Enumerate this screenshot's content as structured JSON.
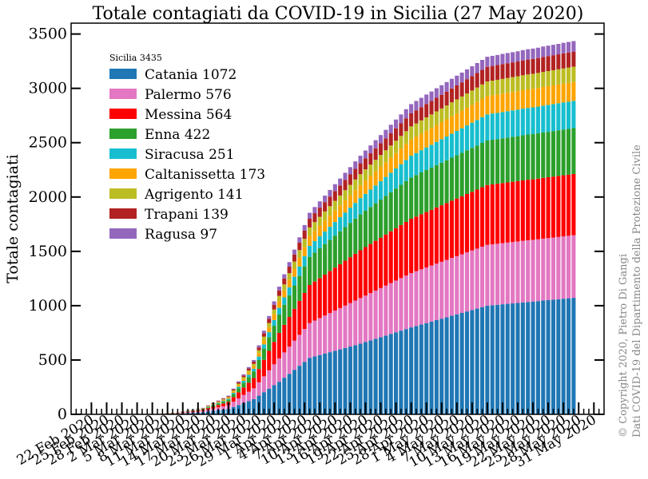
{
  "chart_data": {
    "type": "bar",
    "stacked": true,
    "title": "Totale contagiati da COVID-19 in Sicilia (27 May 2020)",
    "ylabel": "Totale contagiati",
    "xlabel": "",
    "ylim": [
      0,
      3600
    ],
    "yticks": [
      0,
      500,
      1000,
      1500,
      2000,
      2500,
      3000,
      3500
    ],
    "xlim": [
      "2020-02-18",
      "2020-06-02"
    ],
    "x_tick_labels": [
      {
        "date": "2020-02-22",
        "label": "22 Feb 2020"
      },
      {
        "date": "2020-02-25",
        "label": "25 Feb 2020"
      },
      {
        "date": "2020-02-28",
        "label": "28 Feb 2020"
      },
      {
        "date": "2020-03-02",
        "label": "2 Mar 2020"
      },
      {
        "date": "2020-03-05",
        "label": "5 Mar 2020"
      },
      {
        "date": "2020-03-08",
        "label": "8 Mar 2020"
      },
      {
        "date": "2020-03-11",
        "label": "11 Mar 2020"
      },
      {
        "date": "2020-03-14",
        "label": "14 Mar 2020"
      },
      {
        "date": "2020-03-17",
        "label": "17 Mar 2020"
      },
      {
        "date": "2020-03-20",
        "label": "20 Mar 2020"
      },
      {
        "date": "2020-03-23",
        "label": "23 Mar 2020"
      },
      {
        "date": "2020-03-26",
        "label": "26 Mar 2020"
      },
      {
        "date": "2020-03-29",
        "label": "29 Mar 2020"
      },
      {
        "date": "2020-04-01",
        "label": "1 Apr 2020"
      },
      {
        "date": "2020-04-04",
        "label": "4 Apr 2020"
      },
      {
        "date": "2020-04-07",
        "label": "7 Apr 2020"
      },
      {
        "date": "2020-04-10",
        "label": "10 Apr 2020"
      },
      {
        "date": "2020-04-13",
        "label": "13 Apr 2020"
      },
      {
        "date": "2020-04-16",
        "label": "16 Apr 2020"
      },
      {
        "date": "2020-04-19",
        "label": "19 Apr 2020"
      },
      {
        "date": "2020-04-22",
        "label": "22 Apr 2020"
      },
      {
        "date": "2020-04-25",
        "label": "25 Apr 2020"
      },
      {
        "date": "2020-04-28",
        "label": "28 Apr 2020"
      },
      {
        "date": "2020-05-01",
        "label": "1 May 2020"
      },
      {
        "date": "2020-05-04",
        "label": "4 May 2020"
      },
      {
        "date": "2020-05-07",
        "label": "7 May 2020"
      },
      {
        "date": "2020-05-10",
        "label": "10 May 2020"
      },
      {
        "date": "2020-05-13",
        "label": "13 May 2020"
      },
      {
        "date": "2020-05-16",
        "label": "16 May 2020"
      },
      {
        "date": "2020-05-19",
        "label": "19 May 2020"
      },
      {
        "date": "2020-05-22",
        "label": "22 May 2020"
      },
      {
        "date": "2020-05-25",
        "label": "25 May 2020"
      },
      {
        "date": "2020-05-28",
        "label": "28 May 2020"
      },
      {
        "date": "2020-05-31",
        "label": "31 May 2020"
      }
    ],
    "legend": {
      "placement": "upper-left",
      "title": "Sicilia  3435",
      "entries": [
        "Catania 1072",
        "Palermo 576",
        "Messina 564",
        "Enna 422",
        "Siracusa 251",
        "Caltanissetta 173",
        "Agrigento 141",
        "Trapani 139",
        "Ragusa 97"
      ]
    },
    "grid": false,
    "anchor_dates": [
      "2020-03-05",
      "2020-03-10",
      "2020-03-15",
      "2020-03-20",
      "2020-03-25",
      "2020-03-30",
      "2020-04-05",
      "2020-04-15",
      "2020-04-25",
      "2020-05-10",
      "2020-05-27"
    ],
    "series": [
      {
        "name": "Catania",
        "color": "#1f77b4",
        "anchor_values": [
          1,
          6,
          20,
          50,
          140,
          300,
          520,
          650,
          800,
          1000,
          1072
        ]
      },
      {
        "name": "Palermo",
        "color": "#e377c2",
        "anchor_values": [
          0,
          4,
          12,
          35,
          100,
          215,
          320,
          420,
          500,
          560,
          576
        ]
      },
      {
        "name": "Messina",
        "color": "#ff0000",
        "anchor_values": [
          0,
          2,
          10,
          30,
          95,
          235,
          350,
          440,
          500,
          550,
          564
        ]
      },
      {
        "name": "Enna",
        "color": "#2ca02c",
        "anchor_values": [
          0,
          1,
          5,
          20,
          60,
          170,
          260,
          330,
          380,
          410,
          422
        ]
      },
      {
        "name": "Siracusa",
        "color": "#17becf",
        "anchor_values": [
          0,
          1,
          3,
          8,
          25,
          60,
          100,
          150,
          200,
          240,
          251
        ]
      },
      {
        "name": "Caltanissetta",
        "color": "#ffa500",
        "anchor_values": [
          0,
          1,
          3,
          10,
          25,
          60,
          90,
          120,
          150,
          168,
          173
        ]
      },
      {
        "name": "Agrigento",
        "color": "#bcbd22",
        "anchor_values": [
          0,
          0,
          2,
          6,
          20,
          50,
          80,
          100,
          120,
          135,
          141
        ]
      },
      {
        "name": "Trapani",
        "color": "#b22222",
        "anchor_values": [
          0,
          1,
          3,
          8,
          20,
          50,
          80,
          100,
          120,
          135,
          139
        ]
      },
      {
        "name": "Ragusa",
        "color": "#9467bd",
        "anchor_values": [
          0,
          0,
          2,
          5,
          15,
          35,
          55,
          70,
          85,
          93,
          97
        ]
      }
    ]
  },
  "credits": {
    "copyright": "© Copyright 2020, Pietro Di Gangi",
    "source": "Dati COVID-19 del Dipartimento della Protezione Civile"
  }
}
